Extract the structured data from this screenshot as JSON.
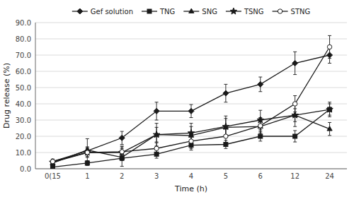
{
  "chart_data": {
    "type": "line",
    "xlabel": "Time (h)",
    "ylabel": "Drug release (%)",
    "categories": [
      "0(15",
      "1",
      "2",
      "3",
      "4",
      "5",
      "6",
      "12",
      "24"
    ],
    "series": [
      {
        "name": "Gef solution",
        "color": "#1a1a1a",
        "marker": "diamond",
        "line_style": "solid",
        "values": [
          4.5,
          11.0,
          19.0,
          35.5,
          35.5,
          46.5,
          52.0,
          65.0,
          70.0
        ],
        "errors": [
          1.0,
          2.5,
          4.0,
          5.5,
          4.0,
          5.5,
          4.5,
          7.0,
          5.0
        ]
      },
      {
        "name": "TNG",
        "color": "#1a1a1a",
        "marker": "square",
        "line_style": "solid",
        "values": [
          1.0,
          3.5,
          6.5,
          9.0,
          14.5,
          15.0,
          20.0,
          20.0,
          36.5
        ],
        "errors": [
          0.5,
          1.5,
          1.5,
          2.5,
          3.0,
          2.5,
          3.0,
          3.5,
          3.5
        ]
      },
      {
        "name": "SNG",
        "color": "#1a1a1a",
        "marker": "triangle",
        "line_style": "solid",
        "values": [
          3.5,
          11.5,
          7.0,
          21.0,
          20.5,
          25.5,
          26.0,
          33.0,
          24.5
        ],
        "errors": [
          1.5,
          7.0,
          5.5,
          4.5,
          5.5,
          5.5,
          5.5,
          4.0,
          4.0
        ]
      },
      {
        "name": "TSNG",
        "color": "#1a1a1a",
        "marker": "star",
        "line_style": "solid",
        "values": [
          4.0,
          10.0,
          10.0,
          21.0,
          22.0,
          26.0,
          30.0,
          33.0,
          36.5
        ],
        "errors": [
          1.5,
          3.0,
          4.0,
          7.0,
          6.0,
          6.5,
          6.0,
          7.0,
          4.5
        ]
      },
      {
        "name": "STNG",
        "color": "#1a1a1a",
        "marker": "open-circle",
        "line_style": "solid",
        "values": [
          4.5,
          10.0,
          10.5,
          12.5,
          17.0,
          20.0,
          26.5,
          40.0,
          75.0
        ],
        "errors": [
          1.5,
          2.5,
          3.0,
          3.5,
          4.5,
          4.5,
          4.5,
          5.0,
          7.0
        ]
      }
    ],
    "ylim": [
      0,
      90.0
    ],
    "yticks": [
      {
        "value": 0.0,
        "label": "0.0"
      },
      {
        "value": 10.0,
        "label": "10.0"
      },
      {
        "value": 20.0,
        "label": "20.0"
      },
      {
        "value": 30.0,
        "label": "30.0"
      },
      {
        "value": 40.0,
        "label": "40.0"
      },
      {
        "value": 50.0,
        "label": "50.0"
      },
      {
        "value": 60.0,
        "label": "60.0"
      },
      {
        "value": 70.0,
        "label": "70.0"
      },
      {
        "value": 80.0,
        "label": "80.0"
      },
      {
        "value": 90.0,
        "label": "90.0"
      }
    ],
    "grid": true,
    "legend": "top"
  }
}
